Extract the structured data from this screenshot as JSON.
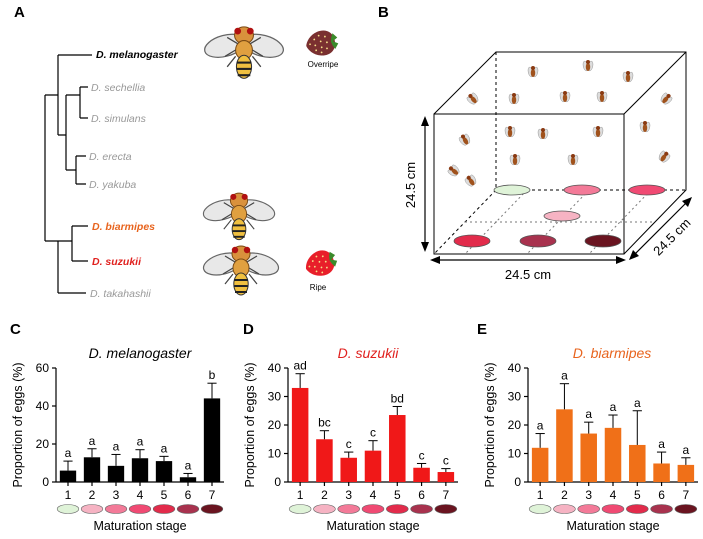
{
  "panel_labels": {
    "a": "A",
    "b": "B",
    "c": "C",
    "d": "D",
    "e": "E"
  },
  "phylogeny": {
    "species": [
      {
        "name": "D. melanogaster",
        "color": "#000000",
        "bold": true
      },
      {
        "name": "D. sechellia",
        "color": "#999999",
        "bold": false
      },
      {
        "name": "D. simulans",
        "color": "#999999",
        "bold": false
      },
      {
        "name": "D. erecta",
        "color": "#999999",
        "bold": false
      },
      {
        "name": "D. yakuba",
        "color": "#999999",
        "bold": false
      },
      {
        "name": "D. biarmipes",
        "color": "#e8641e",
        "bold": true
      },
      {
        "name": "D. suzukii",
        "color": "#e0201e",
        "bold": true
      },
      {
        "name": "D. takahashii",
        "color": "#999999",
        "bold": false
      }
    ],
    "fruit_labels": {
      "overripe": "Overripe",
      "ripe": "Ripe"
    }
  },
  "cage": {
    "height_label": "24.5 cm",
    "depth_label": "24.5 cm",
    "width_label": "24.5 cm"
  },
  "maturation_colors": [
    "#dff3d8",
    "#f6b3c3",
    "#f37a98",
    "#f04a73",
    "#e22b4b",
    "#a8324e",
    "#6a1420"
  ],
  "chart_data": [
    {
      "type": "bar",
      "title": "D. melanogaster",
      "title_color": "#000000",
      "bar_color": "#000000",
      "xlabel": "Maturation stage",
      "ylabel": "Proportion of eggs (%)",
      "categories": [
        "1",
        "2",
        "3",
        "4",
        "5",
        "6",
        "7"
      ],
      "values": [
        6,
        13,
        8.5,
        12.5,
        11,
        2.5,
        44
      ],
      "errors": [
        5,
        4.5,
        6,
        4.5,
        2.5,
        2,
        8
      ],
      "letters": [
        "a",
        "a",
        "a",
        "a",
        "a",
        "a",
        "b"
      ],
      "ylim": [
        0,
        60
      ],
      "yticks": [
        "0",
        "20",
        "40",
        "60"
      ]
    },
    {
      "type": "bar",
      "title": "D. suzukii",
      "title_color": "#e0201e",
      "bar_color": "#f01818",
      "xlabel": "Maturation stage",
      "ylabel": "Proportion of eggs (%)",
      "categories": [
        "1",
        "2",
        "3",
        "4",
        "5",
        "6",
        "7"
      ],
      "values": [
        33,
        15,
        8.5,
        11,
        23.5,
        5,
        3.5
      ],
      "errors": [
        5,
        3,
        2,
        3.5,
        3,
        1.5,
        1.2
      ],
      "letters": [
        "ad",
        "bc",
        "c",
        "c",
        "bd",
        "c",
        "c"
      ],
      "ylim": [
        0,
        40
      ],
      "yticks": [
        "0",
        "10",
        "20",
        "30",
        "40"
      ]
    },
    {
      "type": "bar",
      "title": "D. biarmipes",
      "title_color": "#e8641e",
      "bar_color": "#f07018",
      "xlabel": "Maturation stage",
      "ylabel": "Proportion of eggs (%)",
      "categories": [
        "1",
        "2",
        "3",
        "4",
        "5",
        "6",
        "7"
      ],
      "values": [
        12,
        25.5,
        17,
        19,
        13,
        6.5,
        6
      ],
      "errors": [
        5,
        9,
        4,
        4.5,
        12,
        4,
        2.5
      ],
      "letters": [
        "a",
        "a",
        "a",
        "a",
        "a",
        "a",
        "a"
      ],
      "ylim": [
        0,
        40
      ],
      "yticks": [
        "0",
        "10",
        "20",
        "30",
        "40"
      ]
    }
  ]
}
